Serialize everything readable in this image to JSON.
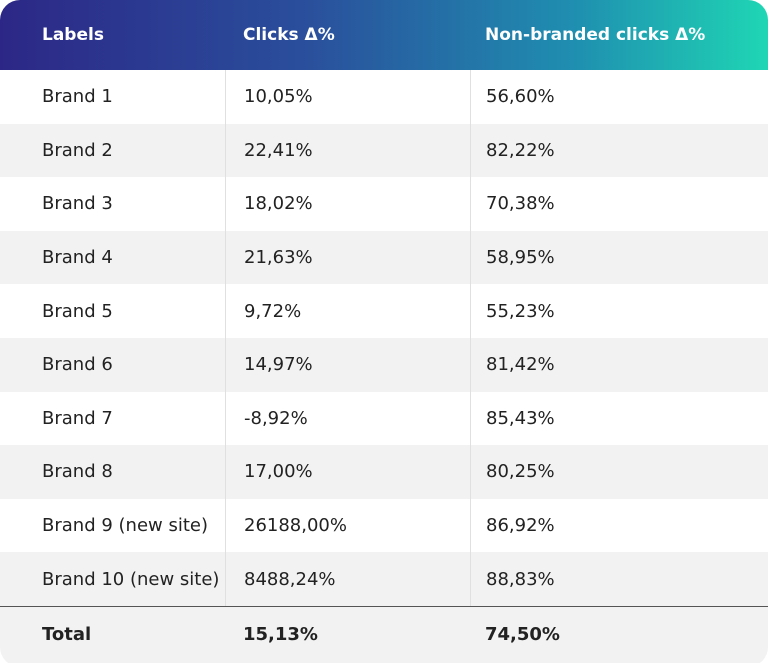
{
  "table": {
    "header": [
      "Labels",
      "Clicks Δ%",
      "Non-branded clicks Δ%"
    ],
    "rows": [
      [
        "Brand 1",
        "10,05%",
        "56,60%"
      ],
      [
        "Brand 2",
        "22,41%",
        "82,22%"
      ],
      [
        "Brand 3",
        "18,02%",
        "70,38%"
      ],
      [
        "Brand 4",
        "21,63%",
        "58,95%"
      ],
      [
        "Brand 5",
        "9,72%",
        "55,23%"
      ],
      [
        "Brand 6",
        "14,97%",
        "81,42%"
      ],
      [
        "Brand 7",
        "-8,92%",
        "85,43%"
      ],
      [
        "Brand 8",
        "17,00%",
        "80,25%"
      ],
      [
        "Brand 9 (new site)",
        "26188,00%",
        "86,92%"
      ],
      [
        "Brand 10 (new site)",
        "8488,24%",
        "88,83%"
      ]
    ],
    "total": [
      "Total",
      "15,13%",
      "74,50%"
    ]
  }
}
